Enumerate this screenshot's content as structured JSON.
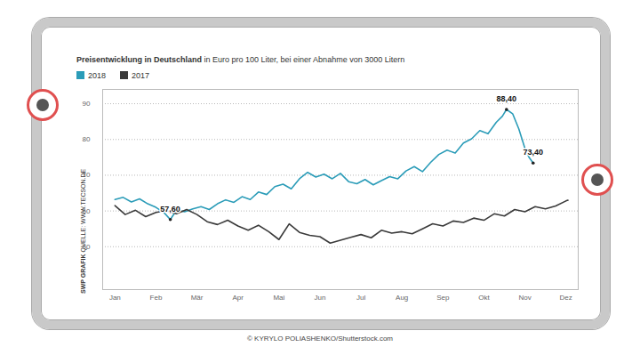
{
  "chart_data": {
    "type": "line",
    "title": "Preisentwicklung in Deutschland",
    "subtitle": "in Euro pro 100 Liter, bei einer Abnahme von 3000 Litern",
    "credit": "SWP GRAFIK",
    "source": "QUELLE: WWW.TECSON.DE",
    "caption": "© KYRYLO POLIASHENKO/Shutterstock.com",
    "legend": "top-left",
    "grid": true,
    "xlim": [
      -0.3,
      11.3
    ],
    "xticks": [
      {
        "value": 0,
        "label": "Jan"
      },
      {
        "value": 1,
        "label": "Feb"
      },
      {
        "value": 2,
        "label": "Mär"
      },
      {
        "value": 3,
        "label": "Apr"
      },
      {
        "value": 4,
        "label": "Mai"
      },
      {
        "value": 5,
        "label": "Jun"
      },
      {
        "value": 6,
        "label": "Jul"
      },
      {
        "value": 7,
        "label": "Aug"
      },
      {
        "value": 8,
        "label": "Sep"
      },
      {
        "value": 9,
        "label": "Okt"
      },
      {
        "value": 10,
        "label": "Nov"
      },
      {
        "value": 11,
        "label": "Dez"
      }
    ],
    "ylim": [
      38,
      94
    ],
    "yticks": [
      50,
      60,
      70,
      80,
      90
    ],
    "series": [
      {
        "name": "2018",
        "color": "#2b9cb8",
        "x": [
          0,
          0.2,
          0.4,
          0.6,
          0.8,
          1.0,
          1.2,
          1.35,
          1.5,
          1.7,
          1.9,
          2.1,
          2.3,
          2.5,
          2.7,
          2.9,
          3.1,
          3.3,
          3.5,
          3.7,
          3.9,
          4.1,
          4.3,
          4.5,
          4.7,
          4.9,
          5.1,
          5.3,
          5.5,
          5.7,
          5.9,
          6.1,
          6.3,
          6.5,
          6.7,
          6.9,
          7.1,
          7.3,
          7.5,
          7.7,
          7.9,
          8.1,
          8.3,
          8.5,
          8.7,
          8.9,
          9.1,
          9.3,
          9.45,
          9.55,
          9.7,
          9.85,
          10.0,
          10.1,
          10.2
        ],
        "values": [
          63.2,
          63.8,
          62.5,
          63.4,
          62.0,
          61.0,
          59.5,
          57.6,
          60.2,
          59.8,
          60.6,
          61.2,
          60.4,
          62.0,
          63.1,
          62.4,
          64.0,
          63.2,
          65.3,
          64.6,
          66.8,
          67.5,
          66.2,
          69.0,
          70.8,
          69.5,
          70.3,
          69.0,
          70.5,
          68.2,
          67.6,
          68.8,
          67.3,
          68.5,
          69.6,
          69.0,
          71.2,
          72.4,
          71.0,
          73.6,
          75.8,
          77.0,
          76.2,
          79.0,
          80.2,
          82.5,
          81.6,
          84.8,
          86.5,
          88.4,
          87.2,
          83.0,
          77.5,
          75.0,
          73.4
        ]
      },
      {
        "name": "2017",
        "color": "#3a3a3a",
        "x": [
          0,
          0.25,
          0.5,
          0.75,
          1.0,
          1.25,
          1.5,
          1.75,
          2.0,
          2.25,
          2.5,
          2.75,
          3.0,
          3.25,
          3.5,
          3.75,
          4.0,
          4.25,
          4.5,
          4.75,
          5.0,
          5.25,
          5.5,
          5.75,
          6.0,
          6.25,
          6.5,
          6.75,
          7.0,
          7.25,
          7.5,
          7.75,
          8.0,
          8.25,
          8.5,
          8.75,
          9.0,
          9.25,
          9.5,
          9.75,
          10.0,
          10.25,
          10.5,
          10.75,
          11.0,
          11.05
        ],
        "values": [
          61.5,
          59.0,
          60.2,
          58.4,
          59.6,
          60.1,
          59.2,
          60.4,
          59.0,
          57.0,
          56.2,
          57.4,
          55.8,
          54.6,
          56.0,
          54.2,
          52.0,
          56.4,
          54.0,
          53.2,
          52.8,
          51.0,
          51.8,
          52.6,
          53.4,
          52.5,
          54.6,
          53.8,
          54.2,
          53.6,
          55.0,
          56.4,
          55.8,
          57.2,
          56.8,
          58.0,
          57.4,
          59.2,
          58.6,
          60.4,
          59.8,
          61.2,
          60.6,
          61.4,
          62.8,
          63.0
        ]
      }
    ],
    "annotations": [
      {
        "x": 1.35,
        "y": 57.6,
        "label": "57,60"
      },
      {
        "x": 9.55,
        "y": 88.4,
        "label": "88,40"
      },
      {
        "x": 10.2,
        "y": 73.4,
        "label": "73,40"
      }
    ]
  }
}
